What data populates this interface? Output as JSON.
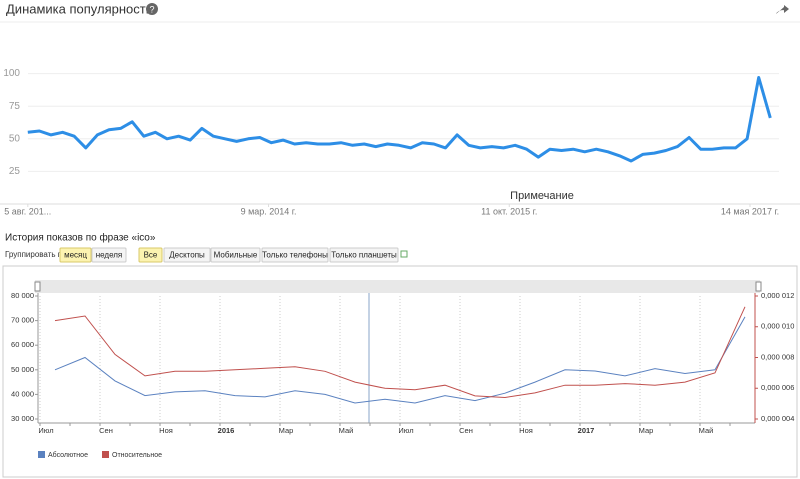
{
  "chart_data": [
    {
      "type": "line",
      "title": "Динамика популярности",
      "annotation": "Примечание",
      "x": [
        0,
        4,
        8,
        12,
        16,
        20,
        24,
        28,
        32,
        36,
        40,
        44,
        48,
        52,
        56,
        60,
        64,
        68,
        72,
        76,
        80,
        84,
        88,
        92,
        96,
        100,
        104,
        108,
        112,
        116,
        120,
        124,
        128,
        132,
        136,
        140,
        144,
        148,
        152,
        156,
        160,
        164,
        168,
        172,
        176,
        180,
        184,
        188,
        192,
        196,
        200,
        204,
        208,
        212,
        216,
        220,
        224,
        228,
        232,
        236,
        240,
        244,
        248,
        252,
        256
      ],
      "series": [
        {
          "color": "#2d8ee6",
          "values": [
            55,
            56,
            53,
            55,
            52,
            43,
            53,
            57,
            58,
            63,
            52,
            55,
            50,
            52,
            49,
            58,
            52,
            50,
            48,
            50,
            51,
            47,
            49,
            46,
            47,
            46,
            46,
            47,
            45,
            46,
            44,
            46,
            45,
            43,
            47,
            46,
            43,
            53,
            45,
            43,
            44,
            43,
            45,
            42,
            36,
            42,
            41,
            42,
            40,
            42,
            40,
            37,
            33,
            38,
            39,
            41,
            44,
            51,
            42,
            42,
            43,
            43,
            50,
            97,
            66
          ]
        }
      ],
      "xlim": [
        -2,
        259
      ],
      "xticks": [
        {
          "value": 0,
          "label": "5 авг. 201..."
        },
        {
          "value": 83,
          "label": "9 мар. 2014 г."
        },
        {
          "value": 166,
          "label": "11 окт. 2015 г."
        },
        {
          "value": 249,
          "label": "14 мая 2017 г."
        }
      ],
      "ylim": [
        0,
        125
      ],
      "yticks": [
        25,
        50,
        75,
        100
      ],
      "grid": true
    },
    {
      "type": "line",
      "title": "История показов по фразе «ico»",
      "categories": [
        "Июл",
        null,
        "Сен",
        null,
        "Ноя",
        null,
        "2016",
        null,
        "Мар",
        null,
        "Май",
        null,
        "Июл",
        null,
        "Сен",
        null,
        "Ноя",
        null,
        "2017",
        null,
        "Мар",
        null,
        "Май",
        null
      ],
      "series": [
        {
          "name": "Абсолютное",
          "color": "#5b82c0",
          "values": [
            50000,
            55000,
            45500,
            39500,
            41000,
            41500,
            39500,
            39000,
            41500,
            40000,
            36500,
            38000,
            36500,
            39500,
            37500,
            40500,
            45000,
            50000,
            49500,
            47500,
            50500,
            48500,
            50000,
            71500
          ]
        },
        {
          "name": "Относительное",
          "color": "#c0504d",
          "axis": "y2",
          "values": [
            1.04e-05,
            1.07e-05,
            8.2e-06,
            6.8e-06,
            7.1e-06,
            7.1e-06,
            7.2e-06,
            7.3e-06,
            7.4e-06,
            7.1e-06,
            6.4e-06,
            6e-06,
            5.9e-06,
            6.2e-06,
            5.5e-06,
            5.4e-06,
            5.7e-06,
            6.2e-06,
            6.2e-06,
            6.3e-06,
            6.2e-06,
            6.4e-06,
            7e-06,
            1.13e-05
          ]
        }
      ],
      "ylim": [
        30000,
        80000
      ],
      "yticks": [
        {
          "value": 30000,
          "label": "30 000"
        },
        {
          "value": 40000,
          "label": "40 000"
        },
        {
          "value": 50000,
          "label": "50 000"
        },
        {
          "value": 60000,
          "label": "60 000"
        },
        {
          "value": 70000,
          "label": "70 000"
        },
        {
          "value": 80000,
          "label": "80 000"
        }
      ],
      "y2lim": [
        4e-06,
        1.2e-05
      ],
      "y2ticks": [
        {
          "value": 4e-06,
          "label": "0,000 004"
        },
        {
          "value": 6e-06,
          "label": "0,000 006"
        },
        {
          "value": 8e-06,
          "label": "0,000 008"
        },
        {
          "value": 1e-05,
          "label": "0,000 010"
        },
        {
          "value": 1.2e-05,
          "label": "0,000 012"
        }
      ]
    }
  ],
  "controls": {
    "group_label": "Группировать по:",
    "period": [
      "месяц",
      "неделя"
    ],
    "devices": [
      "Все",
      "Десктопы",
      "Мобильные",
      "Только телефоны",
      "Только планшеты"
    ]
  }
}
